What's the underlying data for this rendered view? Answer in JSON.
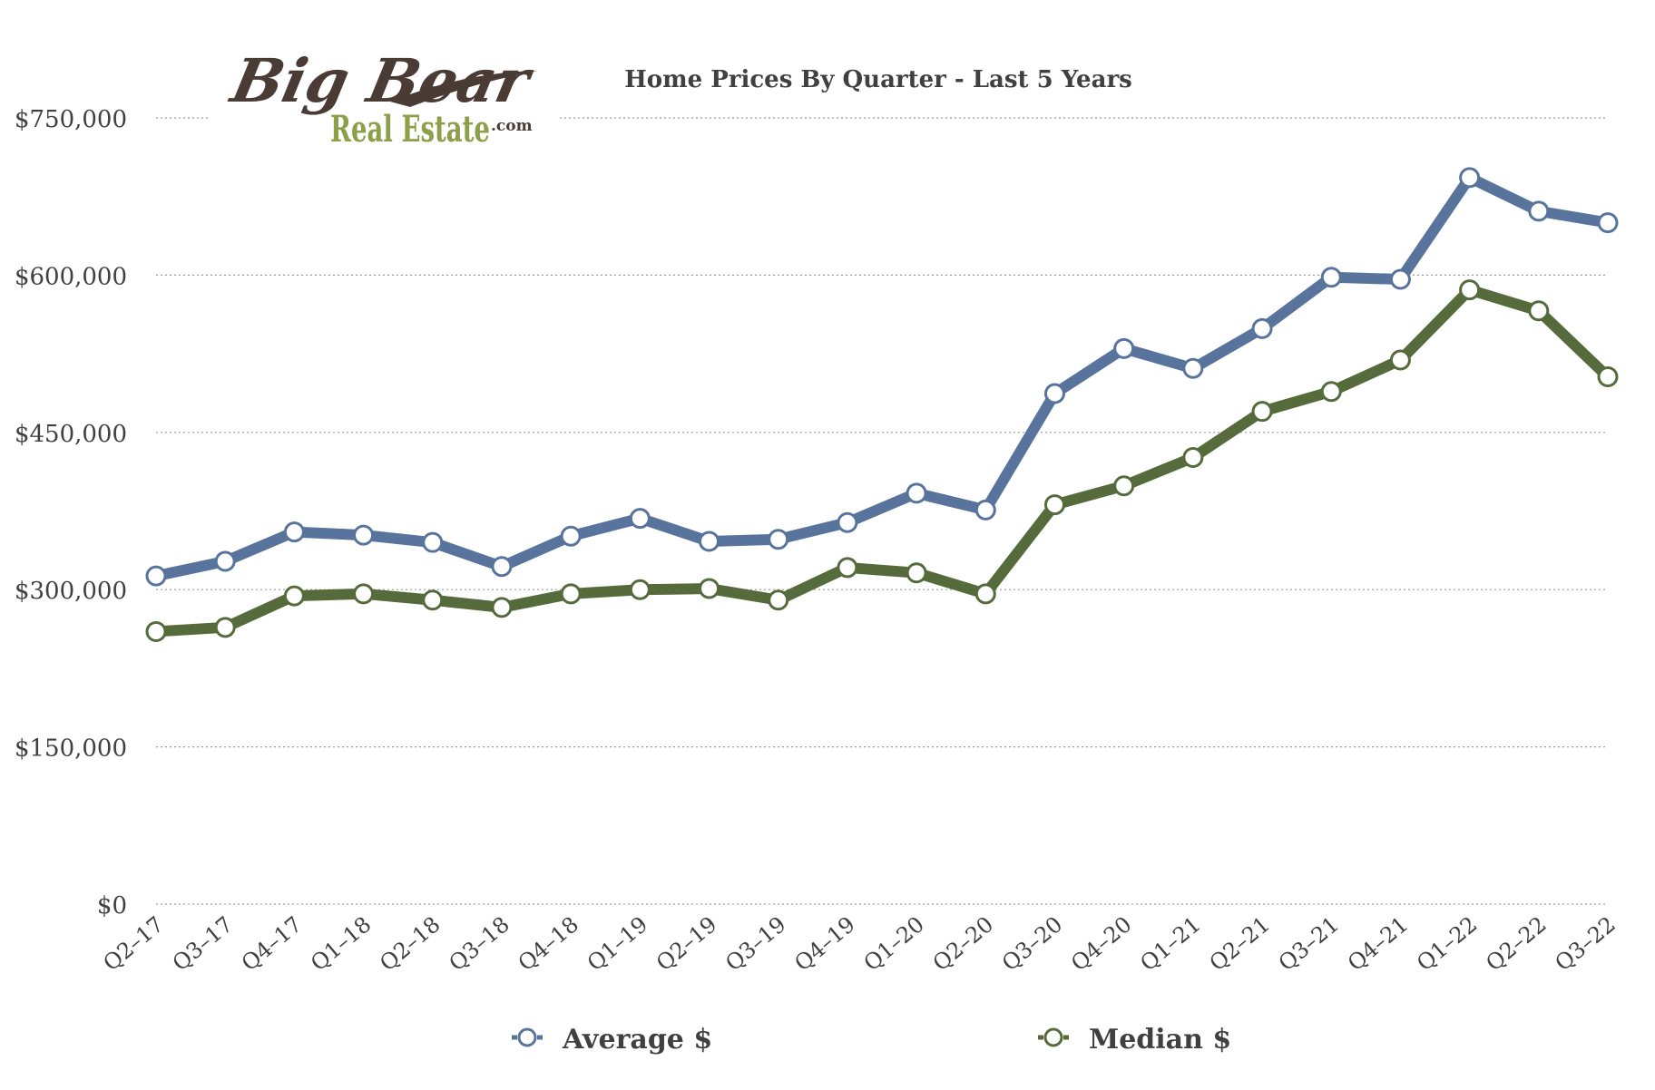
{
  "logo": {
    "line1": "Big Bear",
    "line2": "Real Estate",
    "suffix": ".com",
    "colors": {
      "script": "#4a3b35",
      "accent": "#8ca04a"
    }
  },
  "chart_data": {
    "type": "line",
    "title": "Home Prices By Quarter - Last 5 Years",
    "xlabel": "",
    "ylabel": "",
    "categories": [
      "Q2–17",
      "Q3–17",
      "Q4–17",
      "Q1–18",
      "Q2–18",
      "Q3–18",
      "Q4–18",
      "Q1–19",
      "Q2–19",
      "Q3–19",
      "Q4–19",
      "Q1–20",
      "Q2–20",
      "Q3–20",
      "Q4–20",
      "Q1–21",
      "Q2–21",
      "Q3–21",
      "Q4–21",
      "Q1–22",
      "Q2–22",
      "Q3–22"
    ],
    "ylim": [
      0,
      750000
    ],
    "yticks": [
      0,
      150000,
      300000,
      450000,
      600000,
      750000
    ],
    "ytick_labels": [
      "$0",
      "$150,000",
      "$300,000",
      "$450,000",
      "$600,000",
      "$750,000"
    ],
    "grid": true,
    "legend_position": "bottom",
    "series": [
      {
        "name": "Average $",
        "color": "#58749c",
        "values": [
          313000,
          327000,
          355000,
          352000,
          345000,
          322000,
          351000,
          368000,
          346000,
          348000,
          364000,
          392000,
          376000,
          487000,
          530000,
          511000,
          549000,
          598000,
          596000,
          693000,
          661000,
          650000
        ]
      },
      {
        "name": "Median $",
        "color": "#556b3c",
        "values": [
          260000,
          264000,
          294000,
          296000,
          290000,
          283000,
          296000,
          300000,
          301000,
          290000,
          321000,
          316000,
          296000,
          381000,
          399000,
          426000,
          470000,
          489000,
          519000,
          586000,
          566000,
          503000
        ]
      }
    ]
  }
}
